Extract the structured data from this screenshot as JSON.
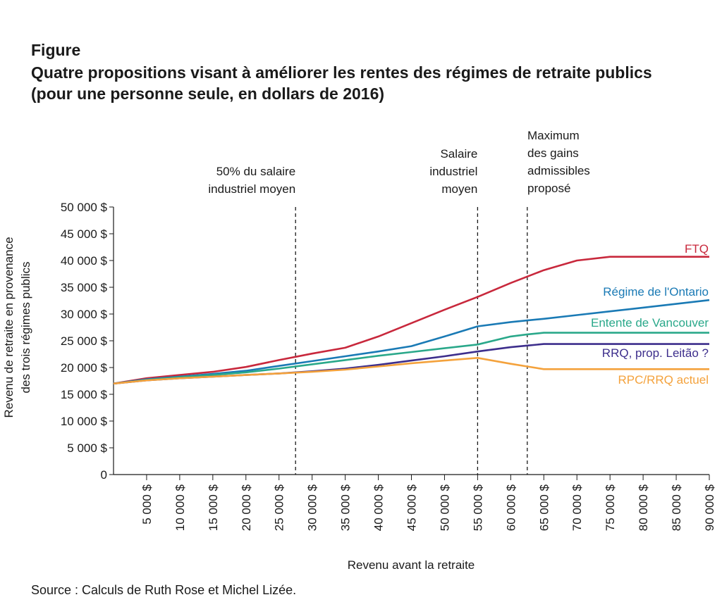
{
  "figure_label": "Figure",
  "title_line1": "Quatre propositions visant à améliorer les rentes des régimes de retraite publics",
  "title_line2": "(pour une personne seule, en dollars de 2016)",
  "source": "Source : Calculs de Ruth Rose et Michel Lizée.",
  "colors": {
    "ftq": "#c8283c",
    "ontario": "#1a7ab5",
    "vancouver": "#2aa88a",
    "rrq_leitao": "#3d2e8c",
    "rpc_rrq": "#f4a23c"
  },
  "chart_data": {
    "type": "line",
    "title": "Quatre propositions visant à améliorer les rentes des régimes de retraite publics",
    "xlabel": "Revenu avant la retraite",
    "ylabel_line1": "Revenu de retraite en provenance",
    "ylabel_line2": "des trois régimes publics",
    "xlim": [
      0,
      90000
    ],
    "ylim": [
      0,
      50000
    ],
    "x_ticks": [
      {
        "value": 5000,
        "label": "5 000 $"
      },
      {
        "value": 10000,
        "label": "10 000 $"
      },
      {
        "value": 15000,
        "label": "15 000 $"
      },
      {
        "value": 20000,
        "label": "20 000 $"
      },
      {
        "value": 25000,
        "label": "25 000 $"
      },
      {
        "value": 30000,
        "label": "30 000 $"
      },
      {
        "value": 35000,
        "label": "35 000 $"
      },
      {
        "value": 40000,
        "label": "40 000 $"
      },
      {
        "value": 45000,
        "label": "45 000 $"
      },
      {
        "value": 50000,
        "label": "50 000 $"
      },
      {
        "value": 55000,
        "label": "55 000 $"
      },
      {
        "value": 60000,
        "label": "60 000 $"
      },
      {
        "value": 65000,
        "label": "65 000 $"
      },
      {
        "value": 70000,
        "label": "70 000 $"
      },
      {
        "value": 75000,
        "label": "75 000 $"
      },
      {
        "value": 80000,
        "label": "80 000 $"
      },
      {
        "value": 85000,
        "label": "85 000 $"
      },
      {
        "value": 90000,
        "label": "90 000 $"
      }
    ],
    "y_ticks": [
      {
        "value": 0,
        "label": "0"
      },
      {
        "value": 5000,
        "label": "5 000 $"
      },
      {
        "value": 10000,
        "label": "10 000 $"
      },
      {
        "value": 15000,
        "label": "15 000 $"
      },
      {
        "value": 20000,
        "label": "20 000 $"
      },
      {
        "value": 25000,
        "label": "25 000 $"
      },
      {
        "value": 30000,
        "label": "30 000 $"
      },
      {
        "value": 35000,
        "label": "35 000 $"
      },
      {
        "value": 40000,
        "label": "40 000 $"
      },
      {
        "value": 45000,
        "label": "45 000 $"
      },
      {
        "value": 50000,
        "label": "50 000 $"
      }
    ],
    "x": [
      0,
      5000,
      10000,
      15000,
      20000,
      25000,
      30000,
      35000,
      40000,
      45000,
      50000,
      55000,
      60000,
      62500,
      65000,
      70000,
      75000,
      80000,
      85000,
      90000
    ],
    "series": [
      {
        "key": "ftq",
        "name": "FTQ",
        "values": [
          17000,
          18000,
          18600,
          19200,
          20100,
          21400,
          22600,
          23700,
          25800,
          28300,
          30800,
          33200,
          35800,
          37000,
          38200,
          40000,
          40700,
          40700,
          40700,
          40700
        ]
      },
      {
        "key": "ontario",
        "name": "Régime de l'Ontario",
        "values": [
          17000,
          17800,
          18300,
          18800,
          19400,
          20300,
          21200,
          22100,
          23000,
          24000,
          25800,
          27700,
          28500,
          28800,
          29100,
          29800,
          30500,
          31200,
          31900,
          32600
        ]
      },
      {
        "key": "vancouver",
        "name": "Entente de Vancouver",
        "values": [
          17000,
          17700,
          18200,
          18600,
          19100,
          19800,
          20600,
          21400,
          22200,
          22900,
          23600,
          24300,
          25800,
          26200,
          26500,
          26500,
          26500,
          26500,
          26500,
          26500
        ]
      },
      {
        "key": "rrq_leitao",
        "name": "RRQ, prop. Leitão ?",
        "values": [
          17000,
          17600,
          18000,
          18300,
          18600,
          18900,
          19300,
          19800,
          20500,
          21300,
          22100,
          23000,
          23800,
          24100,
          24400,
          24400,
          24400,
          24400,
          24400,
          24400
        ]
      },
      {
        "key": "rpc_rrq",
        "name": "RPC/RRQ actuel",
        "values": [
          17000,
          17600,
          18000,
          18300,
          18600,
          18900,
          19200,
          19600,
          20200,
          20800,
          21300,
          21800,
          20700,
          20200,
          19700,
          19700,
          19700,
          19700,
          19700,
          19700
        ]
      }
    ],
    "reference_lines": [
      {
        "x": 27500,
        "label_lines": [
          "50% du salaire",
          "industriel moyen"
        ]
      },
      {
        "x": 55000,
        "label_lines": [
          "Salaire",
          "industriel",
          "moyen"
        ]
      },
      {
        "x": 62500,
        "label_lines": [
          "Maximum",
          "des gains",
          "admissibles",
          "proposé"
        ]
      }
    ],
    "grid": false,
    "legend": "inline-right"
  }
}
